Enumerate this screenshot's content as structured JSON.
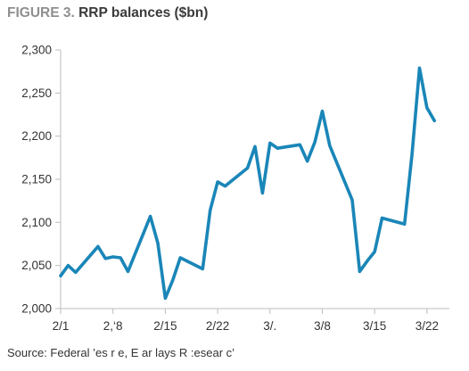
{
  "figure_label": "FIGURE 3.",
  "title": "RRP balances ($bn)",
  "source": "Source: Federal ’es r  e, E  ar  lays R  :esear c’",
  "colors": {
    "line": "#1a86b8",
    "axis": "#bdbdbd",
    "text": "#333333",
    "figure_label": "#8f8f8f"
  },
  "chart_data": {
    "type": "line",
    "title": "RRP balances ($bn)",
    "xlabel": "",
    "ylabel": "",
    "ylim": [
      2000,
      2300
    ],
    "yticks": [
      2000,
      2050,
      2100,
      2150,
      2200,
      2250,
      2300
    ],
    "ytick_labels": [
      "2,000",
      "2,050",
      "2,100",
      "2,150",
      "2,200",
      "2,250",
      "2,300"
    ],
    "xlim": [
      1,
      53
    ],
    "xticks": [
      1,
      8,
      15,
      22,
      29,
      36,
      43,
      50
    ],
    "xtick_labels": [
      "2/1",
      "2,‘8",
      "2/15",
      "2/22",
      "3/.",
      "3/8",
      "3/15",
      "3/22"
    ],
    "grid": false,
    "legend": "none",
    "series": [
      {
        "x": [
          1,
          2,
          3,
          6,
          7,
          8,
          9,
          10,
          13,
          14,
          15,
          16,
          17,
          20,
          21,
          22,
          23,
          26,
          27,
          28,
          29,
          30,
          33,
          34,
          35,
          36,
          37,
          40,
          41,
          42,
          43,
          44,
          47,
          48,
          49,
          50,
          51
        ],
        "values": [
          2038,
          2050,
          2042,
          2072,
          2058,
          2060,
          2059,
          2043,
          2107,
          2076,
          2012,
          2033,
          2059,
          2046,
          2114,
          2147,
          2142,
          2163,
          2188,
          2134,
          2192,
          2186,
          2190,
          2171,
          2193,
          2229,
          2189,
          2126,
          2043,
          2055,
          2066,
          2105,
          2098,
          2179,
          2279,
          2233,
          2218
        ]
      }
    ]
  }
}
